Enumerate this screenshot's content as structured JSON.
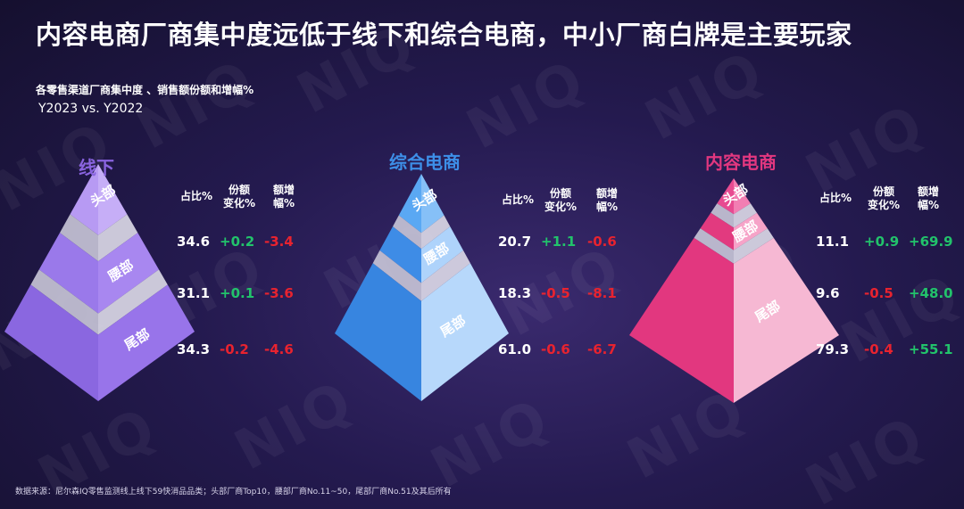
{
  "title": "内容电商厂商集中度远低于线下和综合电商，中小厂商白牌是主要玩家",
  "subtitle": "各零售渠道厂商集中度 、销售额份额和增幅%",
  "period": "Y2023 vs. Y2022",
  "watermark": "NIQ",
  "source": "数据来源：尼尔森IQ零售监测线上线下59快消品品类；头部厂商Top10，腰部厂商No.11~50，尾部厂商No.51及其后所有",
  "colors": {
    "offline": "#9a72ea",
    "ecom": "#3f8fe8",
    "content": "#e2377f",
    "positive": "#22c36b",
    "negative": "#e8232f"
  },
  "chart_data": [
    {
      "type": "table",
      "channel": "线下",
      "columns": [
        "占比%",
        "份额变化%",
        "额增幅%"
      ],
      "rows": [
        {
          "tier": "头部",
          "share": "34.6",
          "share_change": "+0.2",
          "growth": "-3.4"
        },
        {
          "tier": "腰部",
          "share": "31.1",
          "share_change": "+0.1",
          "growth": "-3.6"
        },
        {
          "tier": "尾部",
          "share": "34.3",
          "share_change": "-0.2",
          "growth": "-4.6"
        }
      ]
    },
    {
      "type": "table",
      "channel": "综合电商",
      "columns": [
        "占比%",
        "份额变化%",
        "额增幅%"
      ],
      "rows": [
        {
          "tier": "头部",
          "share": "20.7",
          "share_change": "+1.1",
          "growth": "-0.6"
        },
        {
          "tier": "腰部",
          "share": "18.3",
          "share_change": "-0.5",
          "growth": "-8.1"
        },
        {
          "tier": "尾部",
          "share": "61.0",
          "share_change": "-0.6",
          "growth": "-6.7"
        }
      ]
    },
    {
      "type": "table",
      "channel": "内容电商",
      "columns": [
        "占比%",
        "份额变化%",
        "额增幅%"
      ],
      "rows": [
        {
          "tier": "头部",
          "share": "11.1",
          "share_change": "+0.9",
          "growth": "+69.9"
        },
        {
          "tier": "腰部",
          "share": "9.6",
          "share_change": "-0.5",
          "growth": "+48.0"
        },
        {
          "tier": "尾部",
          "share": "79.3",
          "share_change": "-0.4",
          "growth": "+55.1"
        }
      ]
    }
  ],
  "headers": {
    "share": "占比%",
    "share_change": "份额\n变化%",
    "growth": "额增\n幅%"
  }
}
